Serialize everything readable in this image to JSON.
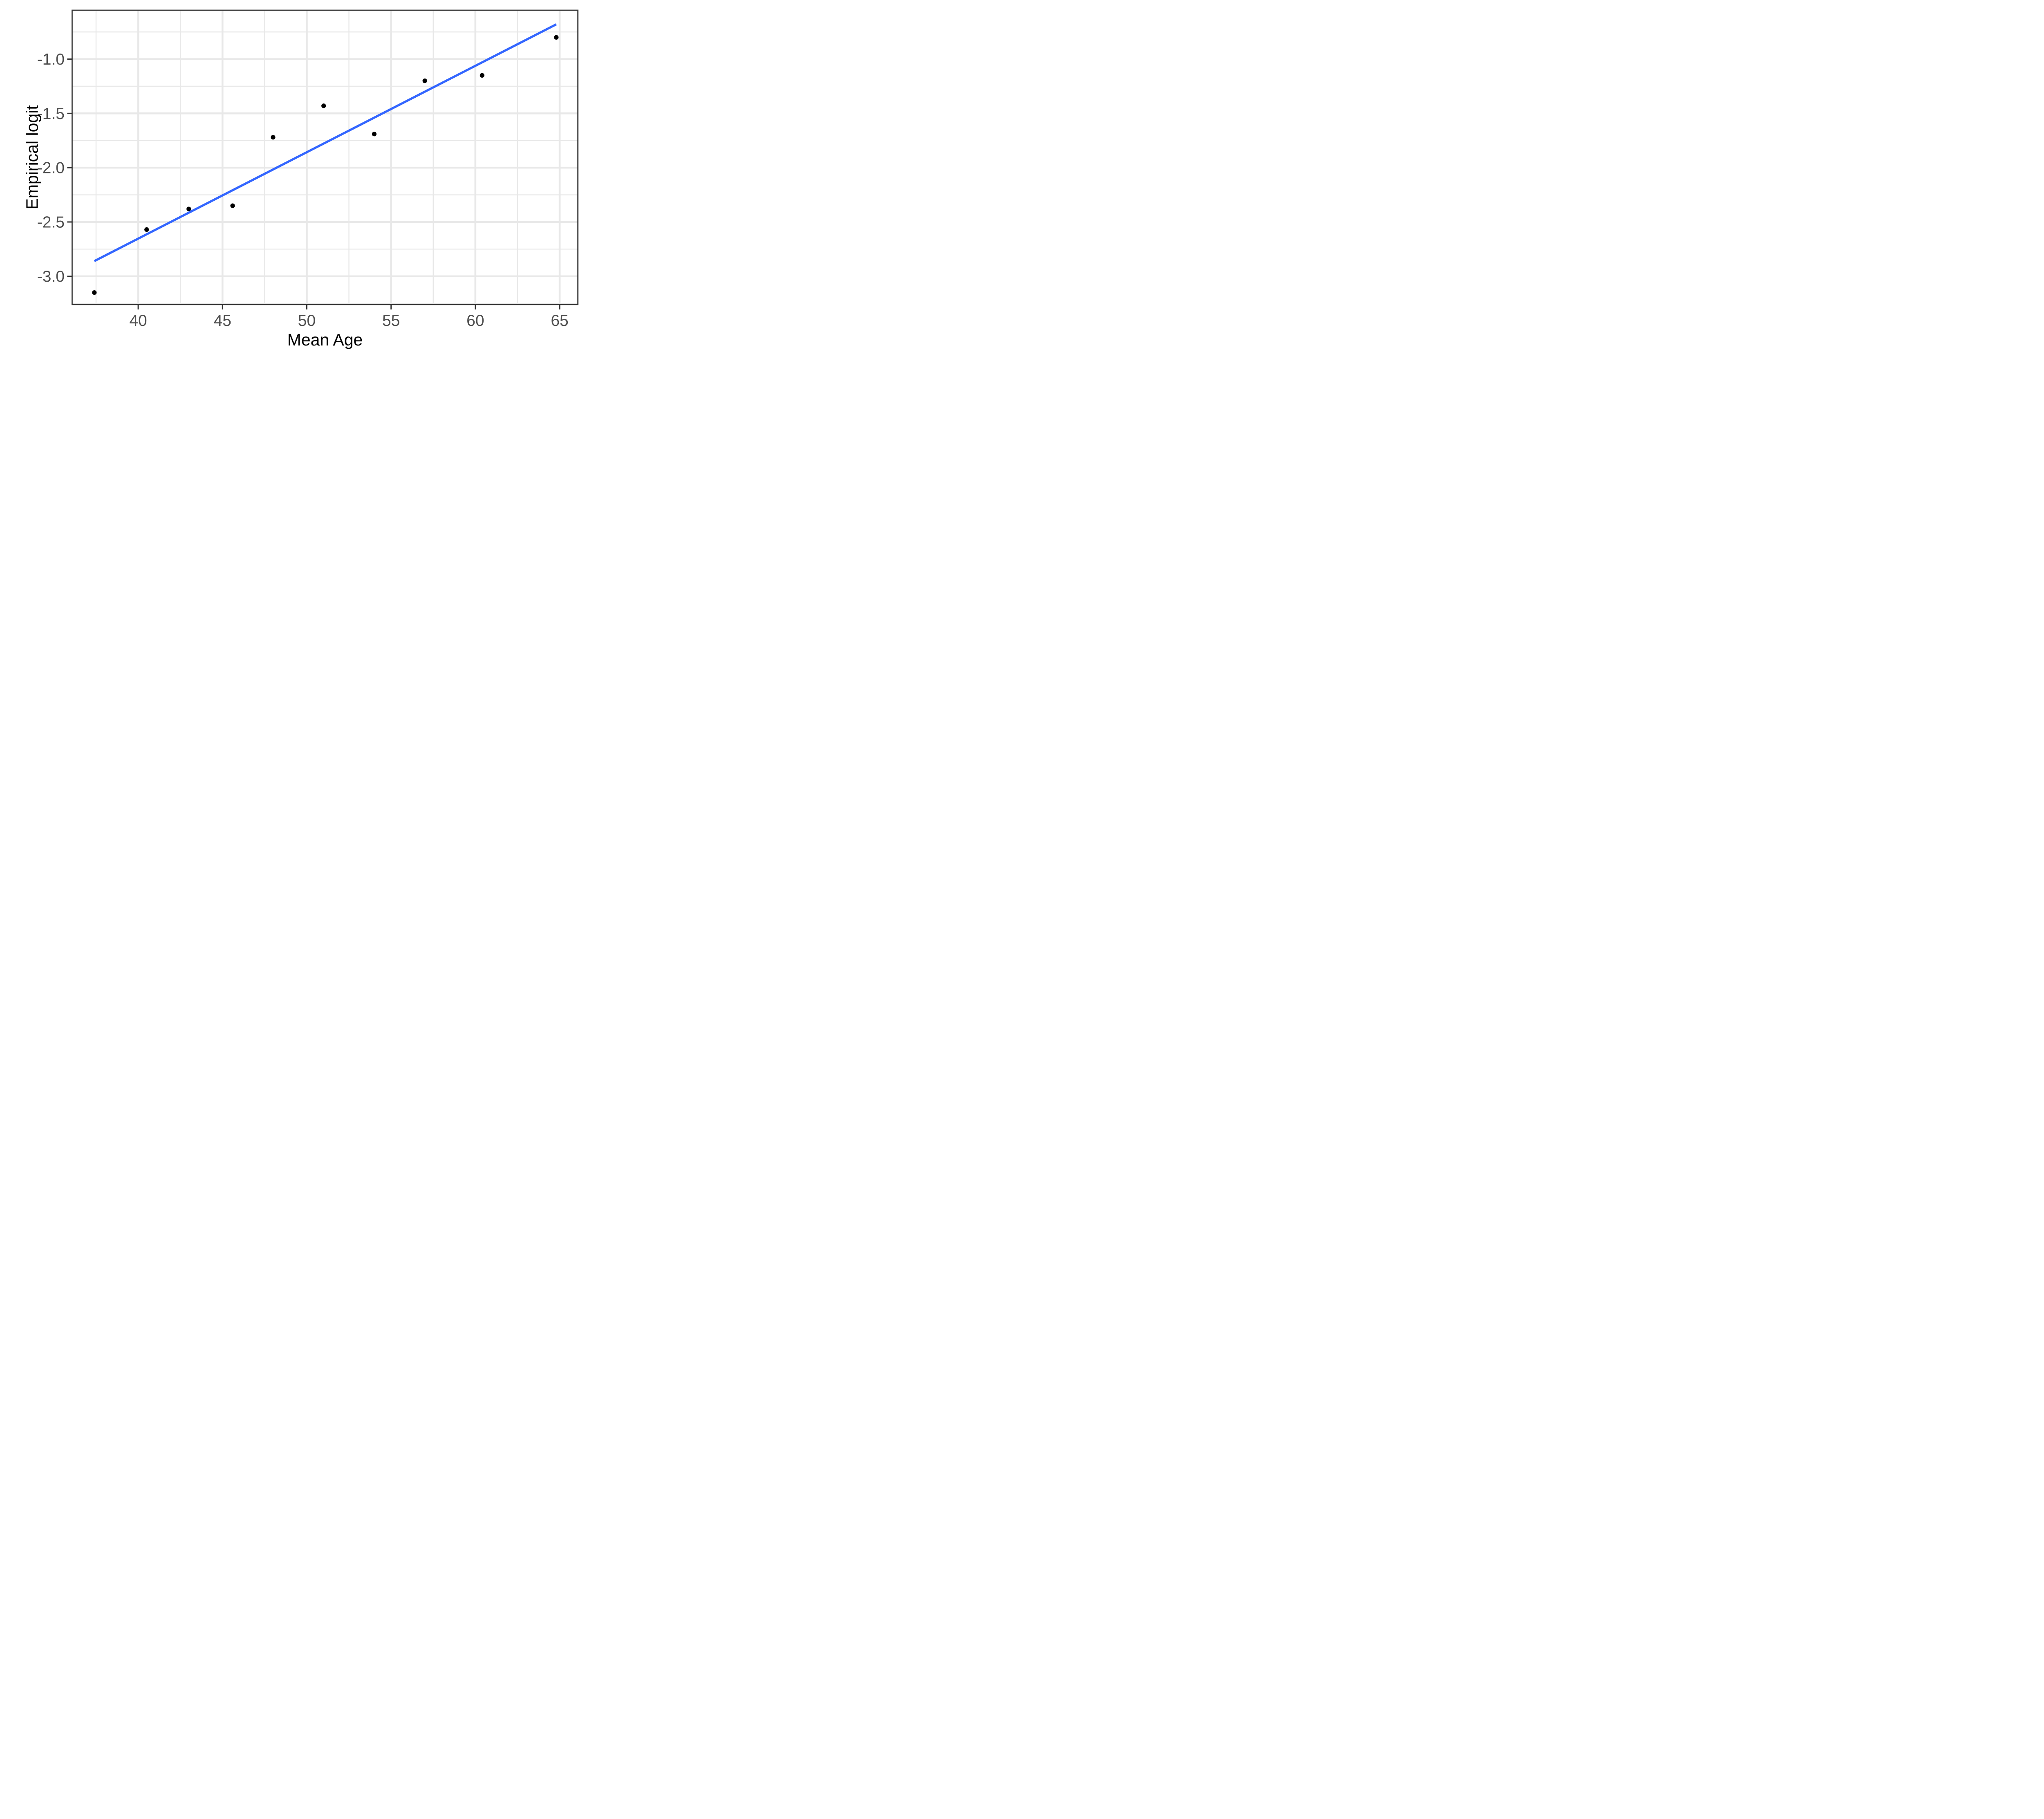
{
  "chart_data": {
    "type": "scatter",
    "title": "",
    "xlabel": "Mean Age",
    "ylabel": "Empirical logit",
    "x_domain": [
      36.08,
      66.08
    ],
    "y_domain": [
      -3.26,
      -0.55
    ],
    "x_ticks": {
      "major": [
        40,
        45,
        50,
        55,
        60,
        65
      ],
      "minor": [
        37.5,
        42.5,
        47.5,
        52.5,
        57.5,
        62.5
      ],
      "labels": [
        "40",
        "45",
        "50",
        "55",
        "60",
        "65"
      ]
    },
    "y_ticks": {
      "major": [
        -1.0,
        -1.5,
        -2.0,
        -2.5,
        -3.0
      ],
      "minor": [
        -0.75,
        -1.25,
        -1.75,
        -2.25,
        -2.75,
        -3.25
      ],
      "labels": [
        "-1.0",
        "-1.5",
        "-2.0",
        "-2.5",
        "-3.0"
      ]
    },
    "series": [
      {
        "name": "empirical-logit-points",
        "type": "scatter",
        "points": [
          [
            37.4,
            -3.15
          ],
          [
            40.5,
            -2.57
          ],
          [
            43.0,
            -2.38
          ],
          [
            45.6,
            -2.35
          ],
          [
            48.0,
            -1.72
          ],
          [
            51.0,
            -1.43
          ],
          [
            54.0,
            -1.69
          ],
          [
            57.0,
            -1.2
          ],
          [
            60.4,
            -1.15
          ],
          [
            64.8,
            -0.8
          ]
        ]
      },
      {
        "name": "linear-fit-line",
        "type": "line",
        "points": [
          [
            37.4,
            -2.86
          ],
          [
            64.8,
            -0.68
          ]
        ]
      }
    ],
    "grid": true,
    "legend": false,
    "colors": {
      "point": "#000000",
      "fit_line": "#3366FF",
      "gridline": "#E8E8E8",
      "panel_border": "#333333",
      "tick_mark": "#333333",
      "tick_label": "#4D4D4D",
      "axis_title": "#000000",
      "background": "#FFFFFF"
    }
  }
}
